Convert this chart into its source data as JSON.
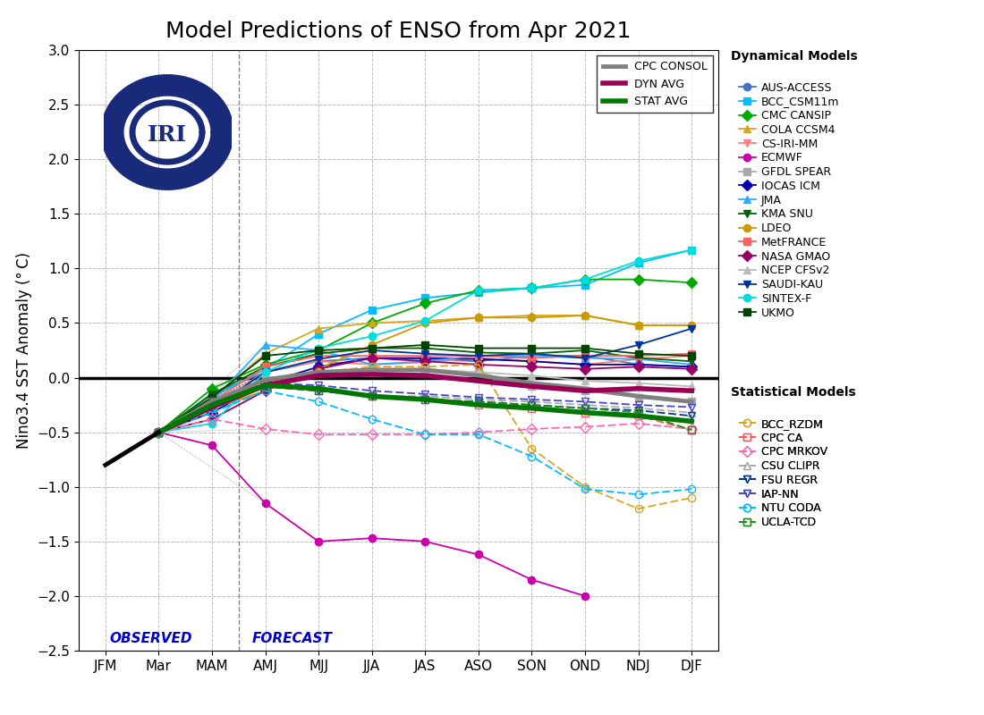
{
  "title": "Model Predictions of ENSO from Apr 2021",
  "ylabel": "Nino3.4 SST Anomaly (° C)",
  "xlabels": [
    "JFM",
    "Mar",
    "MAM",
    "AMJ",
    "MJJ",
    "JJA",
    "JAS",
    "ASO",
    "SON",
    "OND",
    "NDJ",
    "DJF"
  ],
  "ylim": [
    -2.5,
    3.0
  ],
  "yticks": [
    -2.5,
    -2.0,
    -1.5,
    -1.0,
    -0.5,
    0.0,
    0.5,
    1.0,
    1.5,
    2.0,
    2.5,
    3.0
  ],
  "observed_label": "OBSERVED",
  "forecast_label": "FORECAST",
  "obs_text_color": "#0000CD",
  "dyn_models": {
    "AUS-ACCESS": {
      "color": "#4472C4",
      "marker": "o",
      "values": [
        null,
        -0.5,
        -0.15,
        0.05,
        0.15,
        0.18,
        0.17,
        0.15,
        0.2,
        0.2,
        0.12,
        0.1
      ]
    },
    "BCC_CSM11m": {
      "color": "#00BFFF",
      "marker": "s",
      "values": [
        null,
        -0.5,
        -0.18,
        0.08,
        0.4,
        0.62,
        0.73,
        0.78,
        0.82,
        0.85,
        1.05,
        1.17
      ]
    },
    "CMC CANSIP": {
      "color": "#00AA00",
      "marker": "D",
      "values": [
        null,
        -0.5,
        -0.1,
        0.12,
        0.25,
        0.5,
        0.68,
        0.8,
        0.82,
        0.9,
        0.9,
        0.87
      ]
    },
    "COLA CCSM4": {
      "color": "#DAA520",
      "marker": "^",
      "values": [
        null,
        -0.5,
        -0.2,
        0.22,
        0.45,
        0.5,
        0.52,
        0.55,
        0.57,
        0.57,
        0.48,
        0.48
      ]
    },
    "CS-IRI-MM": {
      "color": "#FF8080",
      "marker": "v",
      "values": [
        null,
        -0.5,
        -0.28,
        0.06,
        0.15,
        0.12,
        0.14,
        0.18,
        0.15,
        0.12,
        0.17,
        0.2
      ]
    },
    "ECMWF": {
      "color": "#CC00AA",
      "marker": "o",
      "values": [
        null,
        -0.5,
        -0.62,
        -1.15,
        -1.5,
        -1.47,
        -1.5,
        -1.62,
        -1.85,
        -2.0,
        null,
        null
      ]
    },
    "GFDL SPEAR": {
      "color": "#AAAAAA",
      "marker": "s",
      "values": [
        null,
        -0.5,
        -0.22,
        -0.02,
        0.05,
        0.07,
        0.07,
        0.05,
        -0.08,
        -0.12,
        -0.18,
        -0.22
      ]
    },
    "IOCAS ICM": {
      "color": "#0000AA",
      "marker": "D",
      "values": [
        null,
        -0.5,
        -0.32,
        -0.05,
        0.1,
        0.18,
        0.18,
        0.17,
        0.15,
        0.12,
        0.12,
        0.1
      ]
    },
    "JMA": {
      "color": "#33AAFF",
      "marker": "^",
      "values": [
        null,
        -0.5,
        -0.22,
        0.3,
        0.25,
        0.12,
        0.15,
        0.2,
        0.2,
        0.18,
        0.17,
        0.12
      ]
    },
    "KMA SNU": {
      "color": "#006400",
      "marker": "v",
      "values": [
        null,
        -0.5,
        -0.15,
        0.1,
        0.22,
        0.27,
        0.27,
        0.23,
        0.22,
        0.25,
        0.18,
        0.15
      ]
    },
    "LDEO": {
      "color": "#CC9900",
      "marker": "o",
      "values": [
        null,
        -0.5,
        -0.28,
        -0.12,
        0.08,
        0.3,
        0.5,
        0.55,
        0.55,
        0.57,
        0.48,
        0.48
      ]
    },
    "MetFRANCE": {
      "color": "#FF6060",
      "marker": "s",
      "values": [
        null,
        -0.5,
        -0.22,
        0.1,
        0.2,
        0.2,
        0.2,
        0.2,
        0.18,
        0.2,
        0.2,
        0.22
      ]
    },
    "NASA GMAO": {
      "color": "#990066",
      "marker": "D",
      "values": [
        null,
        -0.5,
        -0.38,
        -0.12,
        0.08,
        0.18,
        0.15,
        0.12,
        0.1,
        0.08,
        0.1,
        0.08
      ]
    },
    "NCEP CFSv2": {
      "color": "#BBBBBB",
      "marker": "^",
      "values": [
        null,
        -0.5,
        -0.22,
        -0.02,
        0.05,
        0.08,
        0.08,
        0.05,
        0.02,
        -0.03,
        -0.05,
        -0.08
      ]
    },
    "SAUDI-KAU": {
      "color": "#003399",
      "marker": "v",
      "values": [
        null,
        -0.5,
        -0.28,
        0.05,
        0.17,
        0.25,
        0.22,
        0.2,
        0.22,
        0.18,
        0.3,
        0.45
      ]
    },
    "SINTEX-F": {
      "color": "#00DDDD",
      "marker": "o",
      "values": [
        null,
        -0.5,
        -0.42,
        0.05,
        0.27,
        0.38,
        0.52,
        0.8,
        0.82,
        0.9,
        1.07,
        1.17
      ]
    },
    "UKMO": {
      "color": "#004400",
      "marker": "s",
      "values": [
        null,
        -0.5,
        -0.18,
        0.2,
        0.25,
        0.27,
        0.3,
        0.27,
        0.27,
        0.27,
        0.22,
        0.2
      ]
    }
  },
  "stat_models": {
    "BCC_RZDM": {
      "color": "#DAA520",
      "marker": "o",
      "values": [
        null,
        -0.5,
        -0.22,
        -0.05,
        0.05,
        0.1,
        0.1,
        0.12,
        -0.65,
        -1.0,
        -1.2,
        -1.1
      ]
    },
    "CPC CA": {
      "color": "#FF5555",
      "marker": "s",
      "values": [
        null,
        -0.5,
        -0.28,
        -0.08,
        -0.12,
        -0.17,
        -0.2,
        -0.25,
        -0.28,
        -0.32,
        -0.35,
        -0.48
      ]
    },
    "CPC MRKOV": {
      "color": "#FF69B4",
      "marker": "D",
      "values": [
        null,
        -0.5,
        -0.38,
        -0.47,
        -0.52,
        -0.52,
        -0.52,
        -0.5,
        -0.47,
        -0.45,
        -0.42,
        -0.47
      ]
    },
    "CSU CLIPR": {
      "color": "#AAAAAA",
      "marker": "^",
      "values": [
        null,
        -0.5,
        -0.22,
        -0.08,
        -0.12,
        -0.17,
        -0.17,
        -0.2,
        -0.22,
        -0.25,
        -0.28,
        -0.32
      ]
    },
    "FSU REGR": {
      "color": "#003399",
      "marker": "v",
      "values": [
        null,
        -0.5,
        -0.28,
        -0.08,
        -0.12,
        -0.17,
        -0.2,
        -0.22,
        -0.25,
        -0.28,
        -0.3,
        -0.35
      ]
    },
    "IAP-NN": {
      "color": "#4444CC",
      "marker": "v",
      "values": [
        null,
        -0.5,
        -0.22,
        -0.05,
        -0.07,
        -0.12,
        -0.15,
        -0.18,
        -0.2,
        -0.22,
        -0.25,
        -0.27
      ]
    },
    "NTU CODA": {
      "color": "#00BBFF",
      "marker": "o",
      "values": [
        null,
        -0.5,
        -0.32,
        -0.12,
        -0.22,
        -0.38,
        -0.52,
        -0.52,
        -0.72,
        -1.02,
        -1.07,
        -1.02
      ]
    },
    "UCLA-TCD": {
      "color": "#228B22",
      "marker": "s",
      "values": [
        null,
        -0.5,
        -0.22,
        -0.08,
        -0.12,
        -0.17,
        -0.2,
        -0.22,
        -0.25,
        -0.28,
        -0.32,
        -0.48
      ]
    }
  },
  "cpc_consol": [
    null,
    -0.5,
    -0.22,
    -0.02,
    0.05,
    0.07,
    0.07,
    0.02,
    -0.05,
    -0.1,
    -0.17,
    -0.22
  ],
  "dyn_avg": [
    null,
    -0.5,
    -0.27,
    -0.07,
    0.02,
    0.03,
    0.02,
    -0.03,
    -0.08,
    -0.12,
    -0.1,
    -0.12
  ],
  "stat_avg": [
    null,
    -0.5,
    -0.25,
    -0.07,
    -0.1,
    -0.17,
    -0.2,
    -0.25,
    -0.28,
    -0.32,
    -0.35,
    -0.4
  ],
  "background_color": "#FFFFFF",
  "grid_color": "#BBBBBB",
  "title_fontsize": 18,
  "label_fontsize": 12,
  "tick_fontsize": 11,
  "legend_fontsize": 9,
  "legend2_fontsize": 9
}
